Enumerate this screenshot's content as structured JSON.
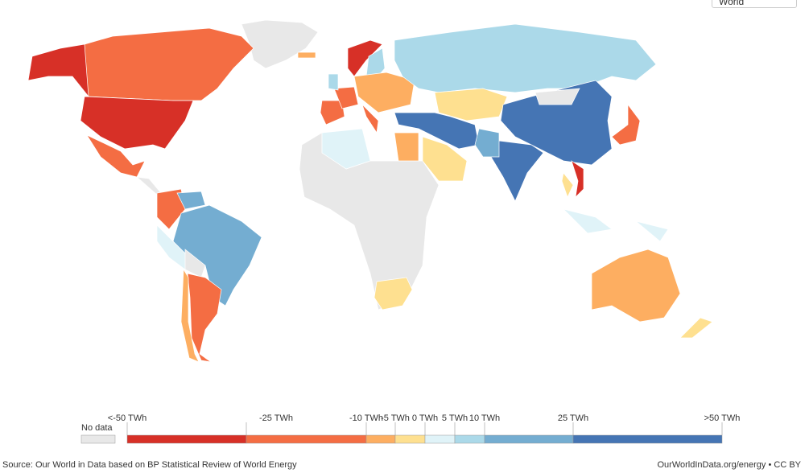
{
  "selector": "World",
  "legend": {
    "no_data": {
      "label": "No data",
      "color": "#e8e8e8"
    },
    "bins": [
      "#d73027",
      "#f46d43",
      "#fdae61",
      "#fee090",
      "#e0f3f8",
      "#abd9e9",
      "#74add1",
      "#4575b4"
    ],
    "labels": [
      "<-50 TWh",
      "-25 TWh",
      "-10 TWh",
      "-5 TWh",
      "0 TWh",
      "5 TWh",
      "10 TWh",
      "25 TWh",
      ">50 TWh"
    ]
  },
  "footer": {
    "source": "Source: Our World in Data based on BP Statistical Review of World Energy",
    "license": "OurWorldInData.org/energy • CC BY"
  }
}
